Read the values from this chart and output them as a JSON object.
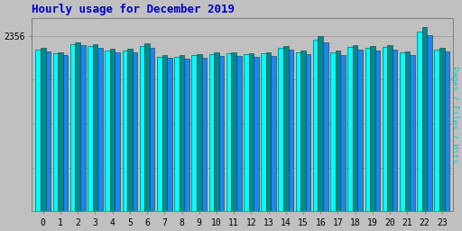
{
  "title": "Hourly usage for December 2019",
  "ylabel": "Pages / Files / Hits",
  "xlabel_values": [
    0,
    1,
    2,
    3,
    4,
    5,
    6,
    7,
    8,
    9,
    10,
    11,
    12,
    13,
    14,
    15,
    16,
    17,
    18,
    19,
    20,
    21,
    22,
    23
  ],
  "ytick_label": "2356",
  "ytick_val": 2356,
  "ylim_max": 2600,
  "pages": [
    2170,
    2120,
    2250,
    2220,
    2160,
    2155,
    2220,
    2080,
    2080,
    2095,
    2110,
    2120,
    2110,
    2120,
    2195,
    2140,
    2310,
    2130,
    2210,
    2200,
    2205,
    2130,
    2420,
    2170
  ],
  "files": [
    2195,
    2140,
    2275,
    2250,
    2190,
    2185,
    2255,
    2100,
    2095,
    2115,
    2130,
    2140,
    2125,
    2140,
    2215,
    2165,
    2355,
    2155,
    2235,
    2225,
    2235,
    2150,
    2480,
    2200
  ],
  "hits": [
    2145,
    2095,
    2230,
    2195,
    2140,
    2140,
    2200,
    2058,
    2050,
    2068,
    2085,
    2090,
    2080,
    2090,
    2170,
    2115,
    2265,
    2100,
    2175,
    2165,
    2170,
    2100,
    2365,
    2150
  ],
  "color_pages": "#00FFFF",
  "color_files": "#008B8B",
  "color_hits": "#1C86EE",
  "bar_edge_color": "#004444",
  "bg_color": "#C0C0C0",
  "plot_bg_color": "#C0C0C0",
  "title_color": "#0000CC",
  "ylabel_color": "#00CCCC",
  "grid_color": "#999999",
  "title_fontsize": 9,
  "tick_fontsize": 7,
  "bar_width": 0.29
}
